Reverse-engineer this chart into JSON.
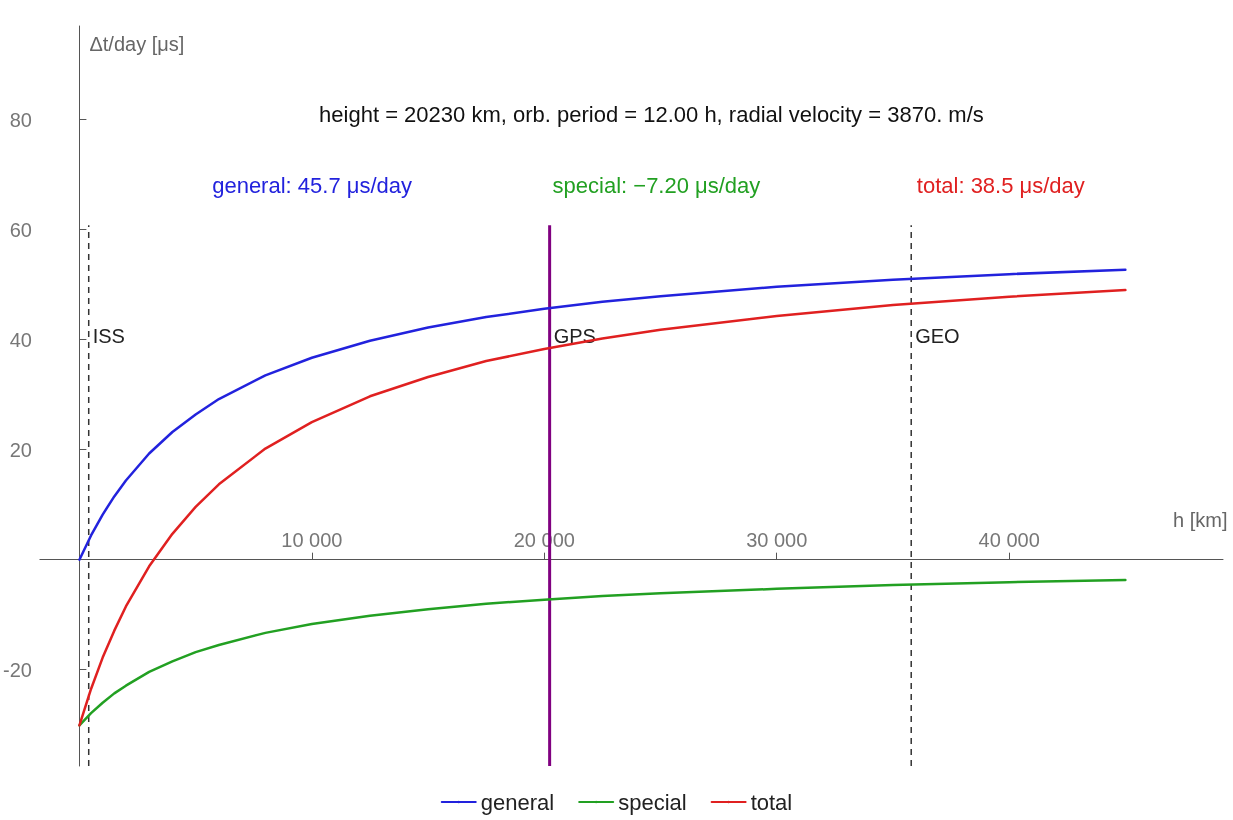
{
  "chart_data": {
    "type": "line",
    "title": "height = 20230 km, orb. period = 12.00 h, radial velocity = 3870. m/s",
    "annotations": [
      "general: 45.7 μs/day",
      "special: −7.20 μs/day",
      "total: 38.5 μs/day"
    ],
    "xlabel": "h [km]",
    "ylabel": "Δt/day [μs]",
    "x": [
      0,
      500,
      1000,
      1500,
      2000,
      3000,
      4000,
      5000,
      6000,
      8000,
      10000,
      12500,
      15000,
      17500,
      20000,
      22500,
      25000,
      30000,
      35000,
      40000,
      45000
    ],
    "series": [
      {
        "name": "general",
        "color": "#2222dd",
        "values": [
          0,
          4.4,
          8.2,
          11.5,
          14.4,
          19.3,
          23.2,
          26.4,
          29.2,
          33.5,
          36.7,
          39.8,
          42.2,
          44.1,
          45.6,
          46.9,
          47.9,
          49.6,
          50.9,
          51.9,
          52.7
        ]
      },
      {
        "name": "special",
        "color": "#22a022",
        "values": [
          -30.1,
          -27.9,
          -26.0,
          -24.3,
          -22.9,
          -20.4,
          -18.5,
          -16.8,
          -15.5,
          -13.3,
          -11.7,
          -10.2,
          -9.0,
          -8.0,
          -7.3,
          -6.6,
          -6.1,
          -5.3,
          -4.6,
          -4.1,
          -3.7
        ]
      },
      {
        "name": "total",
        "color": "#e02020",
        "values": [
          -30.1,
          -23.5,
          -17.8,
          -12.9,
          -8.5,
          -1.2,
          4.7,
          9.6,
          13.7,
          20.2,
          25.0,
          29.7,
          33.2,
          36.1,
          38.3,
          40.2,
          41.8,
          44.3,
          46.3,
          47.8,
          49.0
        ]
      }
    ],
    "xlim": [
      -1700,
      49200
    ],
    "ylim": [
      -37.5,
      97
    ],
    "xticks": [
      {
        "value": 10000,
        "label": "10 000"
      },
      {
        "value": 20000,
        "label": "20 000"
      },
      {
        "value": 30000,
        "label": "30 000"
      },
      {
        "value": 40000,
        "label": "40 000"
      }
    ],
    "yticks": [
      -20,
      20,
      40,
      60,
      80
    ],
    "ref_lines": [
      {
        "axis": "x",
        "value": 400,
        "label": "ISS",
        "color": "#333333",
        "line_style": "dashed"
      },
      {
        "axis": "x",
        "value": 20230,
        "label": "GPS",
        "color": "#800080",
        "line_style": "solid"
      },
      {
        "axis": "x",
        "value": 35786,
        "label": "GEO",
        "color": "#333333",
        "line_style": "dashed"
      }
    ],
    "marker": "none",
    "line_style": "solid",
    "grid": false,
    "legend": "bottom"
  }
}
